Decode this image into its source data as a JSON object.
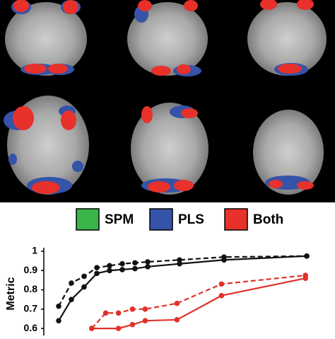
{
  "brain_legend": [
    {
      "label": "SPM",
      "color": "#3ab54a"
    },
    {
      "label": "PLS",
      "color": "#3553a8"
    },
    {
      "label": "Both",
      "color": "#e8312b"
    }
  ],
  "chart_data": {
    "type": "line",
    "y_label": "Metric",
    "xlim": [
      0,
      21.5
    ],
    "ylim": [
      0.56,
      1
    ],
    "yticks": [
      1,
      0.9,
      0.8,
      0.7,
      0.6
    ],
    "series": [
      {
        "color": "#111111",
        "dashed": true,
        "x": [
          1,
          2,
          3,
          4,
          5,
          6,
          7,
          8,
          10.5,
          14,
          20.5
        ],
        "values": [
          0.715,
          0.835,
          0.87,
          0.915,
          0.925,
          0.935,
          0.94,
          0.945,
          0.955,
          0.97,
          0.975
        ]
      },
      {
        "color": "#111111",
        "dashed": false,
        "x": [
          1,
          2,
          3,
          4,
          5,
          6,
          7,
          8,
          10.5,
          14,
          20.5
        ],
        "values": [
          0.64,
          0.75,
          0.815,
          0.885,
          0.9,
          0.905,
          0.91,
          0.92,
          0.935,
          0.955,
          0.975
        ]
      },
      {
        "color": "#e0322a",
        "dashed": true,
        "x": [
          3.6,
          4.7,
          5.7,
          6.8,
          7.8,
          10.3,
          13.8,
          20.4
        ],
        "values": [
          0.6,
          0.68,
          0.68,
          0.7,
          0.7,
          0.73,
          0.83,
          0.875
        ]
      },
      {
        "color": "#e0322a",
        "dashed": false,
        "x": [
          3.6,
          5.7,
          6.8,
          7.8,
          10.3,
          13.8,
          20.4
        ],
        "values": [
          0.6,
          0.6,
          0.62,
          0.64,
          0.645,
          0.77,
          0.86
        ]
      }
    ]
  }
}
